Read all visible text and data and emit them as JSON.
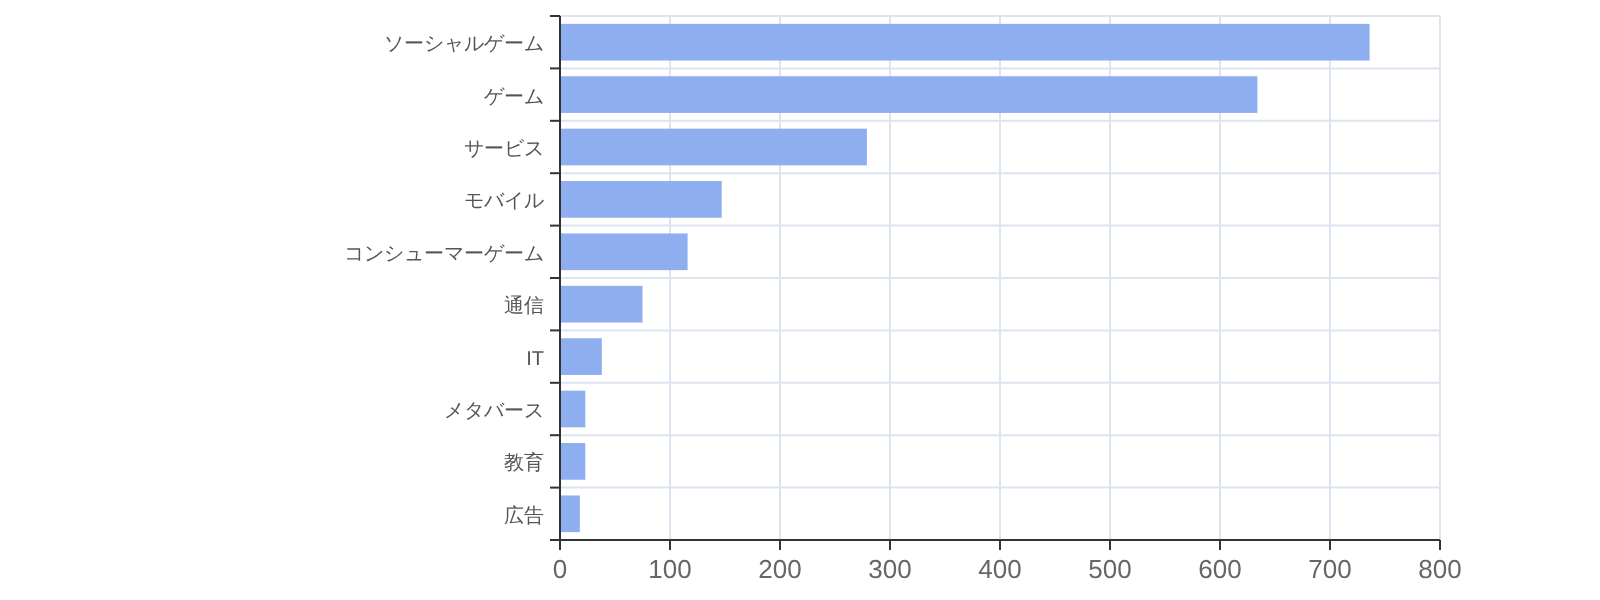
{
  "chart_data": {
    "type": "bar",
    "orientation": "horizontal",
    "categories": [
      "ソーシャルゲーム",
      "ゲーム",
      "サービス",
      "モバイル",
      "コンシューマーゲーム",
      "通信",
      "IT",
      "メタバース",
      "教育",
      "広告"
    ],
    "values": [
      736,
      634,
      279,
      147,
      116,
      75,
      38,
      23,
      23,
      18
    ],
    "color": "#8eaef0",
    "xlim": [
      0,
      800
    ],
    "xticks": [
      0,
      100,
      200,
      300,
      400,
      500,
      600,
      700,
      800
    ],
    "grid": true
  }
}
